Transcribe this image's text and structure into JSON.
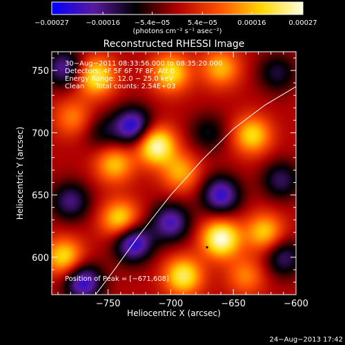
{
  "chart_data": {
    "type": "heatmap",
    "title": "Reconstructed RHESSI Image",
    "xlabel": "Heliocentric X (arcsec)",
    "ylabel": "Heliocentric Y (arcsec)",
    "xlim": [
      -795,
      -600
    ],
    "ylim": [
      570,
      765
    ],
    "x_ticks": [
      -750,
      -700,
      -650,
      -600
    ],
    "y_ticks": [
      600,
      650,
      700,
      750
    ],
    "x_tick_labels": [
      "−750",
      "−700",
      "−650",
      "−600"
    ],
    "y_tick_labels": [
      "600",
      "650",
      "700",
      "750"
    ],
    "colorbar": {
      "range": [
        -0.00027,
        0.00027
      ],
      "tick_values": [
        -0.00027,
        -0.00016,
        -5.4e-05,
        5.4e-05,
        0.00016,
        0.00027
      ],
      "tick_labels": [
        "−0.00027",
        "−0.00016",
        "−5.4e−05",
        "5.4e−05",
        "0.00016",
        "0.00027"
      ],
      "unit_label": "(photons cm⁻² s⁻¹ asec⁻²)",
      "colors": [
        "#0000ff",
        "#5a1aa0",
        "#000000",
        "#b00000",
        "#ff5000",
        "#ffd800",
        "#ffffe0"
      ]
    },
    "info_lines": [
      "30−Aug−2011 08:33:56.000 to 08:35:20.000",
      "Detectors: 4F 5F 6F 7F 8F, Att 0",
      "Energy Range: 12.0 − 25.0 keV",
      "Clean     Total counts: 2.54E+03"
    ],
    "peak_label": "Position of Peak = [−671,608]",
    "peak": [
      -671,
      608
    ],
    "limb_curve": [
      [
        -760,
        570
      ],
      [
        -745,
        590
      ],
      [
        -725,
        618
      ],
      [
        -700,
        650
      ],
      [
        -675,
        678
      ],
      [
        -650,
        703
      ],
      [
        -625,
        722
      ],
      [
        -600,
        737
      ]
    ],
    "sources": [
      {
        "x": -785,
        "y": 752,
        "value": -0.00018
      },
      {
        "x": -760,
        "y": 745,
        "value": 0.00022
      },
      {
        "x": -700,
        "y": 748,
        "value": 0.0002
      },
      {
        "x": -660,
        "y": 752,
        "value": 0.00016
      },
      {
        "x": -615,
        "y": 748,
        "value": -0.00012
      },
      {
        "x": -730,
        "y": 705,
        "value": -0.00024
      },
      {
        "x": -778,
        "y": 712,
        "value": 0.00012
      },
      {
        "x": -712,
        "y": 690,
        "value": 0.00027
      },
      {
        "x": -670,
        "y": 700,
        "value": -0.0001
      },
      {
        "x": -635,
        "y": 698,
        "value": 0.00019
      },
      {
        "x": -745,
        "y": 675,
        "value": 0.00017
      },
      {
        "x": -692,
        "y": 668,
        "value": 0.00015
      },
      {
        "x": -660,
        "y": 650,
        "value": -0.00022
      },
      {
        "x": -612,
        "y": 662,
        "value": -0.00014
      },
      {
        "x": -780,
        "y": 645,
        "value": -0.00016
      },
      {
        "x": -740,
        "y": 630,
        "value": 0.00021
      },
      {
        "x": -700,
        "y": 628,
        "value": -0.0002
      },
      {
        "x": -660,
        "y": 615,
        "value": 0.00027
      },
      {
        "x": -625,
        "y": 620,
        "value": 0.00018
      },
      {
        "x": -730,
        "y": 612,
        "value": -0.00025
      },
      {
        "x": -785,
        "y": 600,
        "value": 0.0002
      },
      {
        "x": -690,
        "y": 585,
        "value": 0.00022
      },
      {
        "x": -770,
        "y": 580,
        "value": -0.00023
      },
      {
        "x": -640,
        "y": 585,
        "value": 0.00012
      },
      {
        "x": -610,
        "y": 600,
        "value": -0.00015
      },
      {
        "x": -755,
        "y": 700,
        "value": -9e-05
      }
    ]
  },
  "footer": {
    "timestamp": "24−Aug−2013 17:42"
  }
}
